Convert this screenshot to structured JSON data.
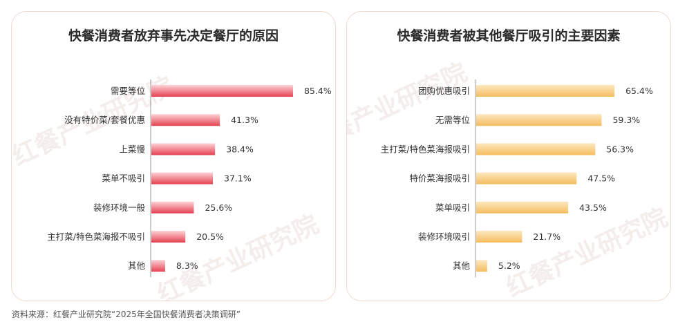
{
  "source": "资料来源：红餐产业研究院“2025年全国快餐消费者决策调研”",
  "watermark": "红餐产业研究院",
  "chart_data": [
    {
      "type": "bar",
      "orientation": "horizontal",
      "title": "快餐消费者放弃事先决定餐厅的原因",
      "categories": [
        "需要等位",
        "没有特价菜/套餐优惠",
        "上菜慢",
        "菜单不吸引",
        "装修环境一般",
        "主打菜/特色菜海报不吸引",
        "其他"
      ],
      "values": [
        85.4,
        41.3,
        38.4,
        37.1,
        25.6,
        20.5,
        8.3
      ],
      "value_labels": [
        "85.4%",
        "41.3%",
        "38.4%",
        "37.1%",
        "25.6%",
        "20.5%",
        "8.3%"
      ],
      "xlim": [
        0,
        100
      ],
      "unit": "%",
      "grid": false,
      "colors": {
        "bar_light": "#fcd3d6",
        "bar_dark": "#e64152",
        "axis": "#999999"
      }
    },
    {
      "type": "bar",
      "orientation": "horizontal",
      "title": "快餐消费者被其他餐厅吸引的主要因素",
      "categories": [
        "团购优惠吸引",
        "无需等位",
        "主打菜/特色菜海报吸引",
        "特价菜海报吸引",
        "菜单吸引",
        "装修环境吸引",
        "其他"
      ],
      "values": [
        65.4,
        59.3,
        56.3,
        47.5,
        43.5,
        21.7,
        5.2
      ],
      "value_labels": [
        "65.4%",
        "59.3%",
        "56.3%",
        "47.5%",
        "43.5%",
        "21.7%",
        "5.2%"
      ],
      "xlim": [
        0,
        100
      ],
      "unit": "%",
      "grid": false,
      "colors": {
        "bar_light": "#fde7bf",
        "bar_dark": "#f4bd60",
        "axis": "#999999"
      }
    }
  ]
}
